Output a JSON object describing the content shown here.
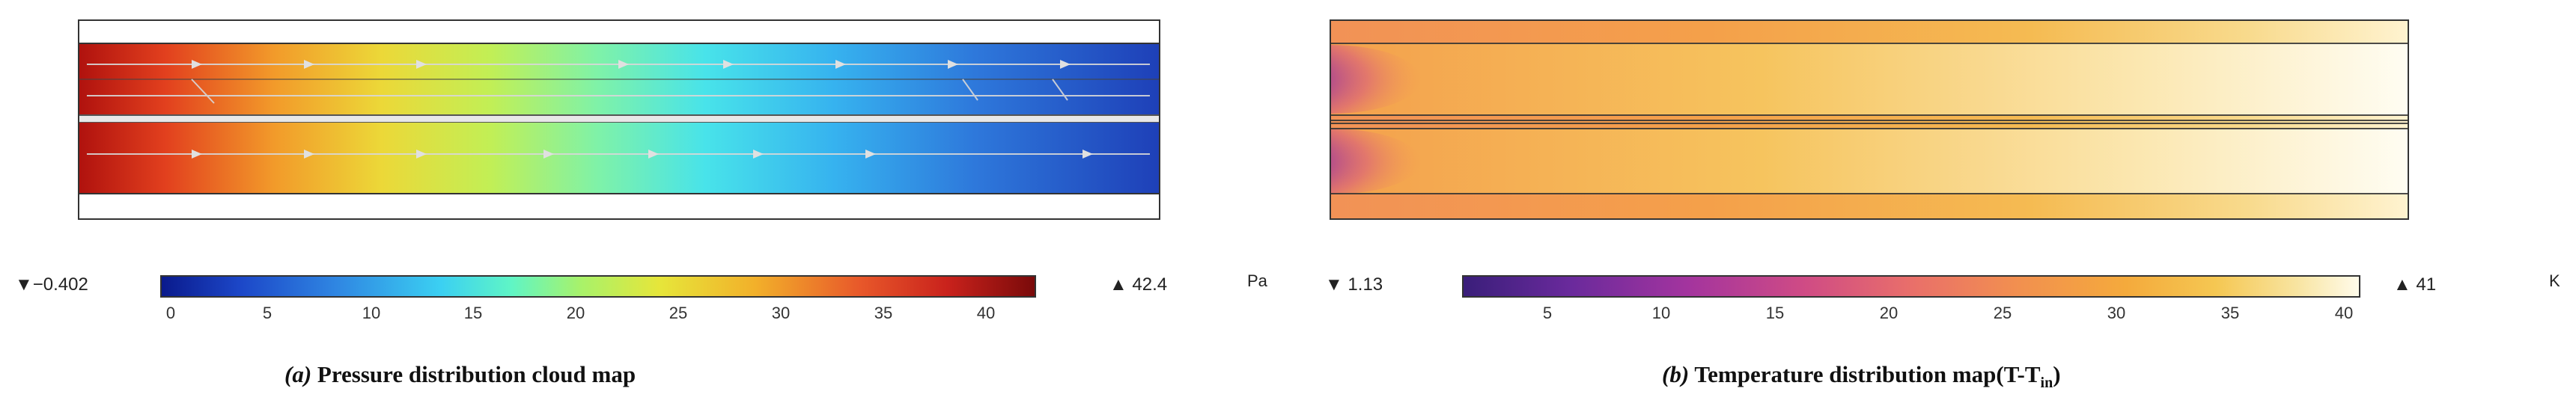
{
  "panel_a": {
    "legend_min": "▼−0.402",
    "legend_max": "▲ 42.4",
    "unit": "Pa",
    "ticks": [
      "0",
      "5",
      "10",
      "15",
      "20",
      "25",
      "30",
      "35",
      "40"
    ],
    "caption_label": "(a)",
    "caption_text": " Pressure distribution cloud map"
  },
  "panel_b": {
    "legend_min": "▼ 1.13",
    "legend_max": "▲ 41",
    "unit": "K",
    "ticks": [
      "5",
      "10",
      "15",
      "20",
      "25",
      "30",
      "35",
      "40"
    ],
    "caption_label": "(b)",
    "caption_text": " Temperature distribution map(T-T",
    "caption_sub": "in",
    "caption_end": ")"
  },
  "colors": {
    "pressure_low": "#0a1a8c",
    "pressure_high": "#7a0a0a",
    "temperature_low": "#3a1e7a",
    "temperature_high": "#fffbea"
  }
}
